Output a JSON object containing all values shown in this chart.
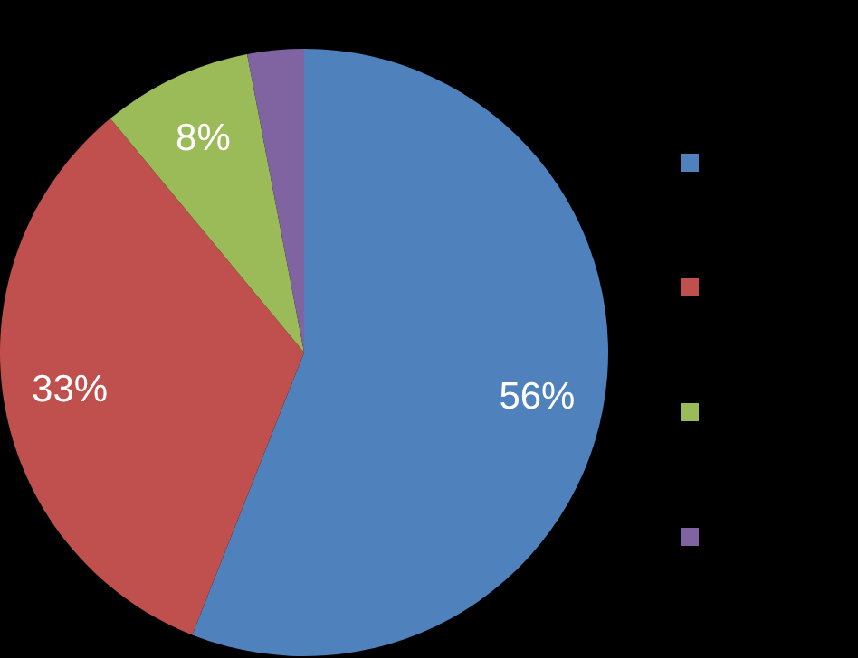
{
  "chart_data": {
    "type": "pie",
    "categories": [
      null,
      null,
      null,
      null
    ],
    "values": [
      56,
      33,
      8,
      3
    ],
    "colors": [
      "#4f81bd",
      "#c0504d",
      "#9bbb59",
      "#8064a2"
    ],
    "value_labels": [
      "56%",
      "33%",
      "8%",
      null
    ]
  }
}
